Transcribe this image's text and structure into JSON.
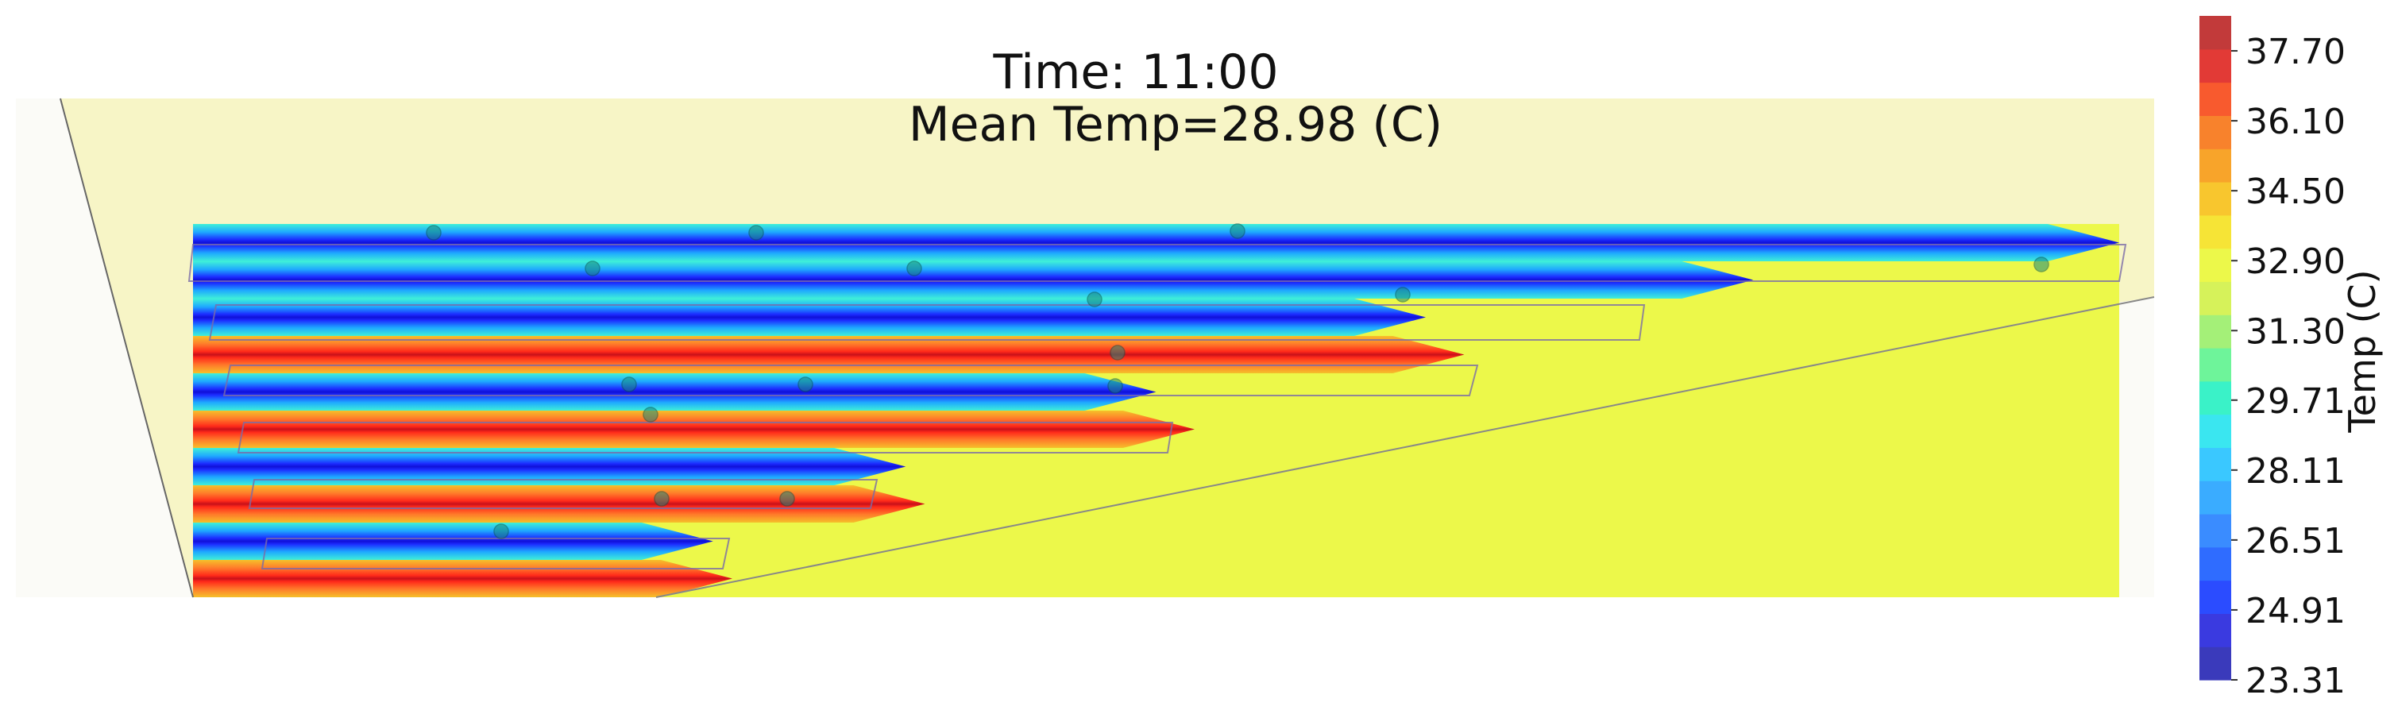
{
  "chart_data": {
    "type": "heatmap",
    "title": "Time: 11:00",
    "subtitle": "Mean Temp=28.98 (C)",
    "colorbar": {
      "label": "Temp (C)",
      "min": 23.31,
      "max": 38.5,
      "ticks": [
        "37.70",
        "36.10",
        "34.50",
        "32.90",
        "31.30",
        "29.71",
        "28.11",
        "26.51",
        "24.91",
        "23.31"
      ],
      "colormap": "jet",
      "levels": 20
    },
    "background_temp": 33.3,
    "rows": [
      {
        "kind": "cool",
        "extent": 1.0
      },
      {
        "kind": "cool",
        "extent": 0.81
      },
      {
        "kind": "cool",
        "extent": 0.64
      },
      {
        "kind": "hot",
        "extent": 0.66
      },
      {
        "kind": "cool",
        "extent": 0.5
      },
      {
        "kind": "hot",
        "extent": 0.52
      },
      {
        "kind": "cool",
        "extent": 0.37
      },
      {
        "kind": "hot",
        "extent": 0.38
      },
      {
        "kind": "cool",
        "extent": 0.27
      },
      {
        "kind": "hot",
        "extent": 0.28
      }
    ],
    "sensors": 18
  }
}
